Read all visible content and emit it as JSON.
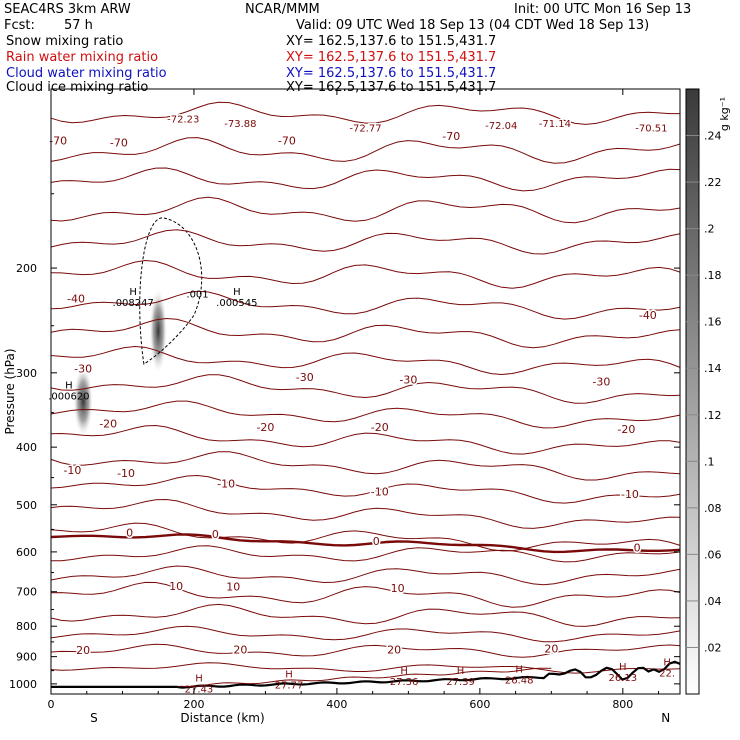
{
  "header": {
    "model": "SEAC4RS   3km ARW",
    "org": "NCAR/MMM",
    "init": "Init: 00 UTC Mon 16 Sep 13",
    "fcst_label": "Fcst:",
    "fcst_value": "57 h",
    "valid": "Valid: 09 UTC Wed 18 Sep 13 (04 CDT Wed 18 Sep 13)"
  },
  "fields": [
    {
      "label": "Snow mixing ratio",
      "xy": "XY=  162.5,137.6  to  151.5,431.7",
      "color": "#000000"
    },
    {
      "label": "Rain water mixing ratio",
      "xy": "XY=  162.5,137.6  to  151.5,431.7",
      "color": "#d01010"
    },
    {
      "label": "Cloud water mixing ratio",
      "xy": "XY=  162.5,137.6  to  151.5,431.7",
      "color": "#1010c0"
    },
    {
      "label": "Cloud ice mixing ratio",
      "xy": "XY=  162.5,137.6  to  151.5,431.7",
      "color": "#000000"
    }
  ],
  "chart_data": {
    "type": "heatmap",
    "xlabel": "Distance (km)",
    "ylabel": "Pressure (hPa)",
    "xlim": [
      0,
      880
    ],
    "ylim": [
      100,
      1040
    ],
    "y_scale": "log",
    "x_ticks": [
      0,
      200,
      400,
      600,
      800
    ],
    "y_ticks": [
      200,
      300,
      400,
      500,
      600,
      700,
      800,
      900,
      1000
    ],
    "end_labels": {
      "left": "S",
      "right": "N"
    },
    "colorbar": {
      "unit": "g kg⁻¹",
      "ticks": [
        ".02",
        ".04",
        ".06",
        ".08",
        ".1",
        ".12",
        ".14",
        ".16",
        ".18",
        ".2",
        ".22",
        ".24"
      ],
      "min": 0,
      "max": 0.26,
      "colors": [
        "#ffffff",
        "#3a3a3a"
      ]
    },
    "temperature_contours": {
      "color": "#7a0a0a",
      "levels": [
        -70,
        -60,
        -50,
        -40,
        -30,
        -20,
        -10,
        0,
        10,
        20,
        25
      ],
      "labels": [
        {
          "x": 10,
          "p": 122,
          "text": "-70"
        },
        {
          "x": 95,
          "p": 123,
          "text": "-70"
        },
        {
          "x": 330,
          "p": 122,
          "text": "-70"
        },
        {
          "x": 560,
          "p": 120,
          "text": "-70"
        },
        {
          "x": 185,
          "p": 112,
          "text": "-72.23"
        },
        {
          "x": 265,
          "p": 114,
          "text": "-73.88"
        },
        {
          "x": 440,
          "p": 116,
          "text": "-72.77"
        },
        {
          "x": 630,
          "p": 115,
          "text": "-72.04"
        },
        {
          "x": 705,
          "p": 114,
          "text": "-71.14"
        },
        {
          "x": 840,
          "p": 116,
          "text": "-70.51"
        },
        {
          "x": 35,
          "p": 225,
          "text": "-40"
        },
        {
          "x": 835,
          "p": 240,
          "text": "-40"
        },
        {
          "x": 45,
          "p": 295,
          "text": "-30"
        },
        {
          "x": 355,
          "p": 305,
          "text": "-30"
        },
        {
          "x": 500,
          "p": 308,
          "text": "-30"
        },
        {
          "x": 770,
          "p": 310,
          "text": "-30"
        },
        {
          "x": 80,
          "p": 365,
          "text": "-20"
        },
        {
          "x": 300,
          "p": 370,
          "text": "-20"
        },
        {
          "x": 460,
          "p": 370,
          "text": "-20"
        },
        {
          "x": 805,
          "p": 373,
          "text": "-20"
        },
        {
          "x": 30,
          "p": 437,
          "text": "-10"
        },
        {
          "x": 105,
          "p": 442,
          "text": "-10"
        },
        {
          "x": 245,
          "p": 460,
          "text": "-10"
        },
        {
          "x": 460,
          "p": 475,
          "text": "-10"
        },
        {
          "x": 810,
          "p": 480,
          "text": "-10"
        },
        {
          "x": 110,
          "p": 557,
          "text": "0"
        },
        {
          "x": 230,
          "p": 560,
          "text": "0"
        },
        {
          "x": 455,
          "p": 575,
          "text": "0"
        },
        {
          "x": 820,
          "p": 590,
          "text": "0"
        },
        {
          "x": 175,
          "p": 685,
          "text": "10"
        },
        {
          "x": 255,
          "p": 686,
          "text": "10"
        },
        {
          "x": 485,
          "p": 690,
          "text": "10"
        },
        {
          "x": 45,
          "p": 877,
          "text": "20"
        },
        {
          "x": 265,
          "p": 876,
          "text": "20"
        },
        {
          "x": 480,
          "p": 876,
          "text": "20"
        },
        {
          "x": 700,
          "p": 872,
          "text": "20"
        }
      ]
    },
    "max_markers": [
      {
        "x": 25,
        "p": 319,
        "label": "H",
        "value": ".000620"
      },
      {
        "x": 115,
        "p": 222,
        "label": "H",
        "value": ".008247"
      },
      {
        "x": 260,
        "p": 222,
        "label": "H",
        "value": ".000545"
      },
      {
        "x": 207,
        "p": 990,
        "label": "H",
        "value": "27.43"
      },
      {
        "x": 333,
        "p": 975,
        "label": "H",
        "value": "27.77"
      },
      {
        "x": 494,
        "p": 963,
        "label": "H",
        "value": "27.36"
      },
      {
        "x": 573,
        "p": 963,
        "label": "H",
        "value": "27.39"
      },
      {
        "x": 655,
        "p": 957,
        "label": "H",
        "value": "26.48"
      },
      {
        "x": 800,
        "p": 947,
        "label": "H",
        "value": "26.13"
      },
      {
        "x": 862,
        "p": 932,
        "label": "H",
        "value": "22."
      }
    ],
    "ice_contour_label": {
      "x": 205,
      "p": 224,
      "text": ".001"
    }
  }
}
